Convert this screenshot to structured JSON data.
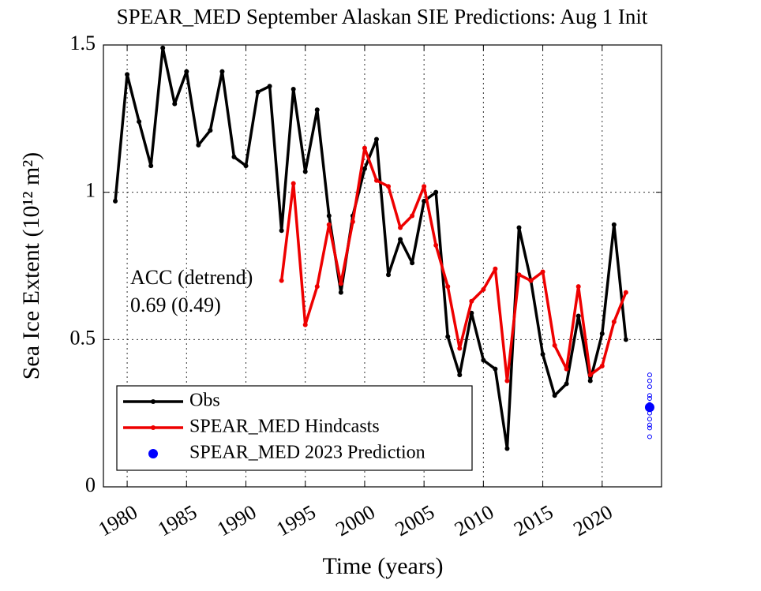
{
  "chart_data": {
    "type": "line",
    "title": "SPEAR_MED September Alaskan SIE Predictions: Aug 1 Init",
    "x_label": "Time (years)",
    "y_label": "Sea Ice Extent (10¹² m²)",
    "annotations": [
      "ACC (detrend)",
      "0.69 (0.49)"
    ],
    "xlim": [
      1978,
      2025
    ],
    "xticks": [
      1980,
      1985,
      1990,
      1995,
      2000,
      2005,
      2010,
      2015,
      2020
    ],
    "ylim": [
      0,
      1.5
    ],
    "yticks": [
      0,
      0.5,
      1,
      1.5
    ],
    "grid": true,
    "legend": "lower left",
    "series": [
      {
        "name": "Obs",
        "color": "#000000",
        "x": [
          1979,
          1980,
          1981,
          1982,
          1983,
          1984,
          1985,
          1986,
          1987,
          1988,
          1989,
          1990,
          1991,
          1992,
          1993,
          1994,
          1995,
          1996,
          1997,
          1998,
          1999,
          2000,
          2001,
          2002,
          2003,
          2004,
          2005,
          2006,
          2007,
          2008,
          2009,
          2010,
          2011,
          2012,
          2013,
          2014,
          2015,
          2016,
          2017,
          2018,
          2019,
          2020,
          2021,
          2022
        ],
        "values": [
          0.97,
          1.4,
          1.24,
          1.09,
          1.49,
          1.3,
          1.41,
          1.16,
          1.21,
          1.41,
          1.12,
          1.09,
          1.34,
          1.36,
          0.87,
          1.35,
          1.07,
          1.28,
          0.92,
          0.66,
          0.92,
          1.08,
          1.18,
          0.72,
          0.84,
          0.76,
          0.97,
          1.0,
          0.51,
          0.38,
          0.59,
          0.43,
          0.4,
          0.13,
          0.88,
          0.7,
          0.45,
          0.31,
          0.35,
          0.58,
          0.36,
          0.52,
          0.89,
          0.5
        ]
      },
      {
        "name": "SPEAR_MED Hindcasts",
        "color": "#ee0000",
        "x": [
          1993,
          1994,
          1995,
          1996,
          1997,
          1998,
          1999,
          2000,
          2001,
          2002,
          2003,
          2004,
          2005,
          2006,
          2007,
          2008,
          2009,
          2010,
          2011,
          2012,
          2013,
          2014,
          2015,
          2016,
          2017,
          2018,
          2019,
          2020,
          2021,
          2022
        ],
        "values": [
          0.7,
          1.03,
          0.55,
          0.68,
          0.89,
          0.69,
          0.9,
          1.15,
          1.04,
          1.02,
          0.88,
          0.92,
          1.02,
          0.82,
          0.68,
          0.47,
          0.63,
          0.67,
          0.74,
          0.36,
          0.72,
          0.7,
          0.73,
          0.48,
          0.4,
          0.68,
          0.38,
          0.41,
          0.56,
          0.66
        ]
      },
      {
        "name": "SPEAR_MED 2023 Prediction",
        "color": "#0000ff",
        "x": [
          2024
        ],
        "values": [
          0.27
        ],
        "ensemble_values": [
          0.38,
          0.36,
          0.34,
          0.31,
          0.3,
          0.28,
          0.265,
          0.25,
          0.23,
          0.21,
          0.2,
          0.17
        ]
      }
    ]
  }
}
